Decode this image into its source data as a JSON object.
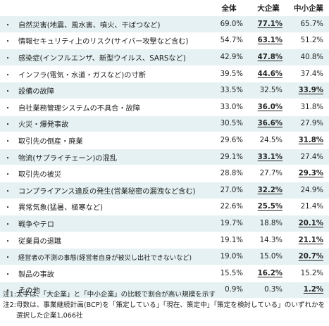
{
  "table": {
    "headers": [
      "全体",
      "大企業",
      "中小企業"
    ],
    "bullet": "・",
    "rows": [
      {
        "label": "自然災害(地震、風水害、噴火、干ばつなど)",
        "all": "69.0%",
        "large": "77.1%",
        "sme": "65.7%",
        "highlight": "large"
      },
      {
        "label": "情報セキュリティ上のリスク(サイバー攻撃など含む)",
        "all": "54.7%",
        "large": "63.1%",
        "sme": "51.2%",
        "highlight": "large"
      },
      {
        "label": "感染症(インフルエンザ、新型ウイルス、SARSなど)",
        "all": "42.9%",
        "large": "47.8%",
        "sme": "40.8%",
        "highlight": "large"
      },
      {
        "label": "インフラ(電気・水道・ガスなど)の寸断",
        "all": "39.5%",
        "large": "44.6%",
        "sme": "37.4%",
        "highlight": "large"
      },
      {
        "label": "設備の故障",
        "all": "33.5%",
        "large": "32.5%",
        "sme": "33.9%",
        "highlight": "sme"
      },
      {
        "label": "自社業務管理システムの不具合・故障",
        "all": "33.0%",
        "large": "36.0%",
        "sme": "31.8%",
        "highlight": "large"
      },
      {
        "label": "火災・爆発事故",
        "all": "30.5%",
        "large": "36.6%",
        "sme": "27.9%",
        "highlight": "large"
      },
      {
        "label": "取引先の倒産・廃業",
        "all": "29.6%",
        "large": "24.5%",
        "sme": "31.8%",
        "highlight": "sme"
      },
      {
        "label": "物流(サプライチェーン)の混乱",
        "all": "29.1%",
        "large": "33.1%",
        "sme": "27.4%",
        "highlight": "large"
      },
      {
        "label": "取引先の被災",
        "all": "28.8%",
        "large": "27.7%",
        "sme": "29.3%",
        "highlight": "sme"
      },
      {
        "label": "コンプライアンス違反の発生(営業秘密の漏洩など含む)",
        "all": "27.0%",
        "large": "32.2%",
        "sme": "24.9%",
        "highlight": "large"
      },
      {
        "label": "異常気象(猛暑、極寒など)",
        "all": "22.6%",
        "large": "25.5%",
        "sme": "21.4%",
        "highlight": "large"
      },
      {
        "label": "戦争やテロ",
        "all": "19.7%",
        "large": "18.8%",
        "sme": "20.1%",
        "highlight": "sme"
      },
      {
        "label": "従業員の退職",
        "all": "19.1%",
        "large": "14.3%",
        "sme": "21.1%",
        "highlight": "sme"
      },
      {
        "label": "経営者の不測の事態(経営者自身が被災し出社できないなど)",
        "all": "19.0%",
        "large": "15.0%",
        "sme": "20.7%",
        "highlight": "sme",
        "small": true
      },
      {
        "label": "製品の事故",
        "all": "15.5%",
        "large": "16.2%",
        "sme": "15.2%",
        "highlight": "large"
      },
      {
        "label": "その他",
        "all": "0.9%",
        "large": "0.3%",
        "sme": "1.2%",
        "highlight": "sme"
      }
    ]
  },
  "notes": [
    {
      "tag": "注1:",
      "text": "太字は、「大企業」と「中小企業」の比較で割合が高い規模を示す"
    },
    {
      "tag": "注2:",
      "text": "母数は、事業継続計画(BCP)を「策定している」「現在、策定中」「策定を検討している」のいずれかを選択した企業1,066社"
    }
  ]
}
